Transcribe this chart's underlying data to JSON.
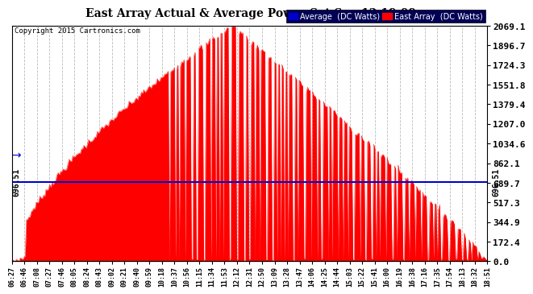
{
  "title": "East Array Actual & Average Power Sat Sep 12 19:09",
  "copyright": "Copyright 2015 Cartronics.com",
  "average_value": 696.51,
  "y_max": 2069.1,
  "y_ticks": [
    0.0,
    172.4,
    344.9,
    517.3,
    689.7,
    862.1,
    1034.6,
    1207.0,
    1379.4,
    1551.8,
    1724.3,
    1896.7,
    2069.1
  ],
  "background_color": "#ffffff",
  "plot_bg_color": "#ffffff",
  "fill_color": "#ff0000",
  "avg_line_color": "#0000cc",
  "legend_avg_bg": "#0000cc",
  "legend_east_bg": "#ff0000",
  "x_labels": [
    "06:27",
    "06:46",
    "07:08",
    "07:27",
    "07:46",
    "08:05",
    "08:24",
    "08:43",
    "09:02",
    "09:21",
    "09:40",
    "09:59",
    "10:18",
    "10:37",
    "10:56",
    "11:15",
    "11:34",
    "11:53",
    "12:12",
    "12:31",
    "12:50",
    "13:09",
    "13:28",
    "13:47",
    "14:06",
    "14:25",
    "14:44",
    "15:03",
    "15:22",
    "15:41",
    "16:00",
    "16:19",
    "16:38",
    "17:16",
    "17:35",
    "17:54",
    "18:13",
    "18:32",
    "18:51"
  ],
  "num_points": 390
}
